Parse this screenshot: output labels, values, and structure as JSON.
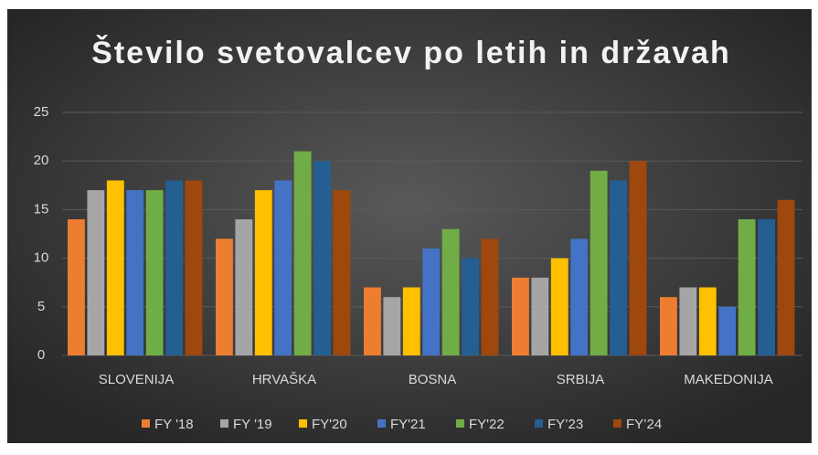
{
  "chart_data": {
    "type": "bar",
    "title": "Število svetovalcev po letih in državah",
    "categories": [
      "SLOVENIJA",
      "HRVAŠKA",
      "BOSNA",
      "SRBIJA",
      "MAKEDONIJA"
    ],
    "series": [
      {
        "name": "FY '18",
        "color": "#ED7D31",
        "values": [
          14,
          12,
          7,
          8,
          6
        ]
      },
      {
        "name": "FY '19",
        "color": "#A5A5A5",
        "values": [
          17,
          14,
          6,
          8,
          7
        ]
      },
      {
        "name": "FY'20",
        "color": "#FFC000",
        "values": [
          18,
          17,
          7,
          10,
          7
        ]
      },
      {
        "name": "FY'21",
        "color": "#4472C4",
        "values": [
          17,
          18,
          11,
          12,
          5
        ]
      },
      {
        "name": "FY'22",
        "color": "#70AD47",
        "values": [
          17,
          21,
          13,
          19,
          14
        ]
      },
      {
        "name": "FY’23",
        "color": "#255E91",
        "values": [
          18,
          20,
          10,
          18,
          14
        ]
      },
      {
        "name": "FY’24",
        "color": "#9E480E",
        "values": [
          18,
          17,
          12,
          20,
          16
        ]
      }
    ],
    "ylim": [
      0,
      25
    ],
    "yticks": [
      0,
      5,
      10,
      15,
      20,
      25
    ],
    "grid": true,
    "legend": "bottom"
  }
}
